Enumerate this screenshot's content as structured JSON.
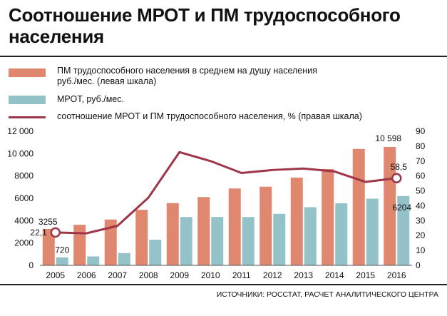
{
  "title": "Соотношение МРОТ и ПМ трудоспособного населения",
  "legend": [
    {
      "label": "ПМ трудоспособного населения в среднем на душу населения руб./мес. (левая шкала)",
      "color": "#e08770",
      "kind": "bar"
    },
    {
      "label": "МРОТ, руб./мес.",
      "color": "#93c2c9",
      "kind": "bar"
    },
    {
      "label": "соотношение МРОТ и ПМ трудоспособного населения, % (правая шкала)",
      "color": "#9e3548",
      "kind": "line"
    }
  ],
  "source": "ИСТОЧНИКИ: РОССТАТ, РАСЧЕТ АНАЛИТИЧЕСКОГО ЦЕНТРА",
  "chart_data": {
    "type": "bar",
    "categories": [
      "2005",
      "2006",
      "2007",
      "2008",
      "2009",
      "2010",
      "2011",
      "2012",
      "2013",
      "2014",
      "2015",
      "2016"
    ],
    "series": [
      {
        "name": "ПМ трудоспособного населения в среднем на душу населения руб./мес. (левая шкала)",
        "type": "bar",
        "axis": "left",
        "color": "#e08770",
        "values": [
          3255,
          3630,
          4100,
          4970,
          5570,
          6110,
          6880,
          7040,
          7850,
          8620,
          10420,
          10598
        ]
      },
      {
        "name": "МРОТ, руб./мес.",
        "type": "bar",
        "axis": "left",
        "color": "#93c2c9",
        "values": [
          720,
          800,
          1100,
          2300,
          4330,
          4330,
          4330,
          4610,
          5205,
          5554,
          5965,
          6204
        ]
      },
      {
        "name": "соотношение МРОТ и ПМ трудоспособного населения, % (правая шкала)",
        "type": "line",
        "axis": "right",
        "color": "#9e3548",
        "values": [
          22.1,
          21.5,
          26.5,
          45.5,
          76,
          70,
          62,
          64,
          65,
          63,
          56,
          58.5
        ]
      }
    ],
    "y_left": {
      "min": 0,
      "max": 12000,
      "ticks": [
        0,
        2000,
        4000,
        6000,
        8000,
        10000,
        12000
      ],
      "tick_labels": [
        "0",
        "2000",
        "4000",
        "6000",
        "8000",
        "10 000",
        "12 000"
      ]
    },
    "y_right": {
      "min": 0,
      "max": 90,
      "ticks": [
        0,
        10,
        20,
        30,
        40,
        50,
        60,
        70,
        80,
        90
      ],
      "tick_labels": [
        "0",
        "10",
        "20",
        "30",
        "40",
        "50",
        "60",
        "70",
        "80",
        "90"
      ]
    },
    "annotations": [
      {
        "series": 0,
        "index": 0,
        "text": "3255"
      },
      {
        "series": 1,
        "index": 0,
        "text": "720"
      },
      {
        "series": 2,
        "index": 0,
        "text": "22,1",
        "marker": true
      },
      {
        "series": 0,
        "index": 11,
        "text": "10 598"
      },
      {
        "series": 2,
        "index": 11,
        "text": "58,5",
        "marker": true
      },
      {
        "series": 1,
        "index": 11,
        "text": "6204"
      }
    ],
    "grid": false
  }
}
